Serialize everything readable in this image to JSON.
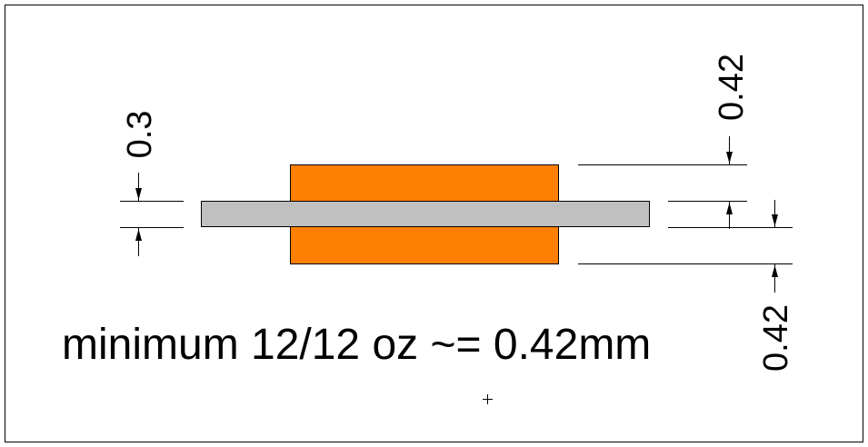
{
  "colors": {
    "background": "#ffffff",
    "border": "#000000",
    "copper": "#ff8000",
    "core": "#c0c0c0",
    "line": "#000000"
  },
  "dimensions": {
    "core_thickness": "0.3",
    "copper_top": "0.42",
    "copper_bottom": "0.42"
  },
  "caption": "minimum 12/12 oz ~= 0.42mm"
}
